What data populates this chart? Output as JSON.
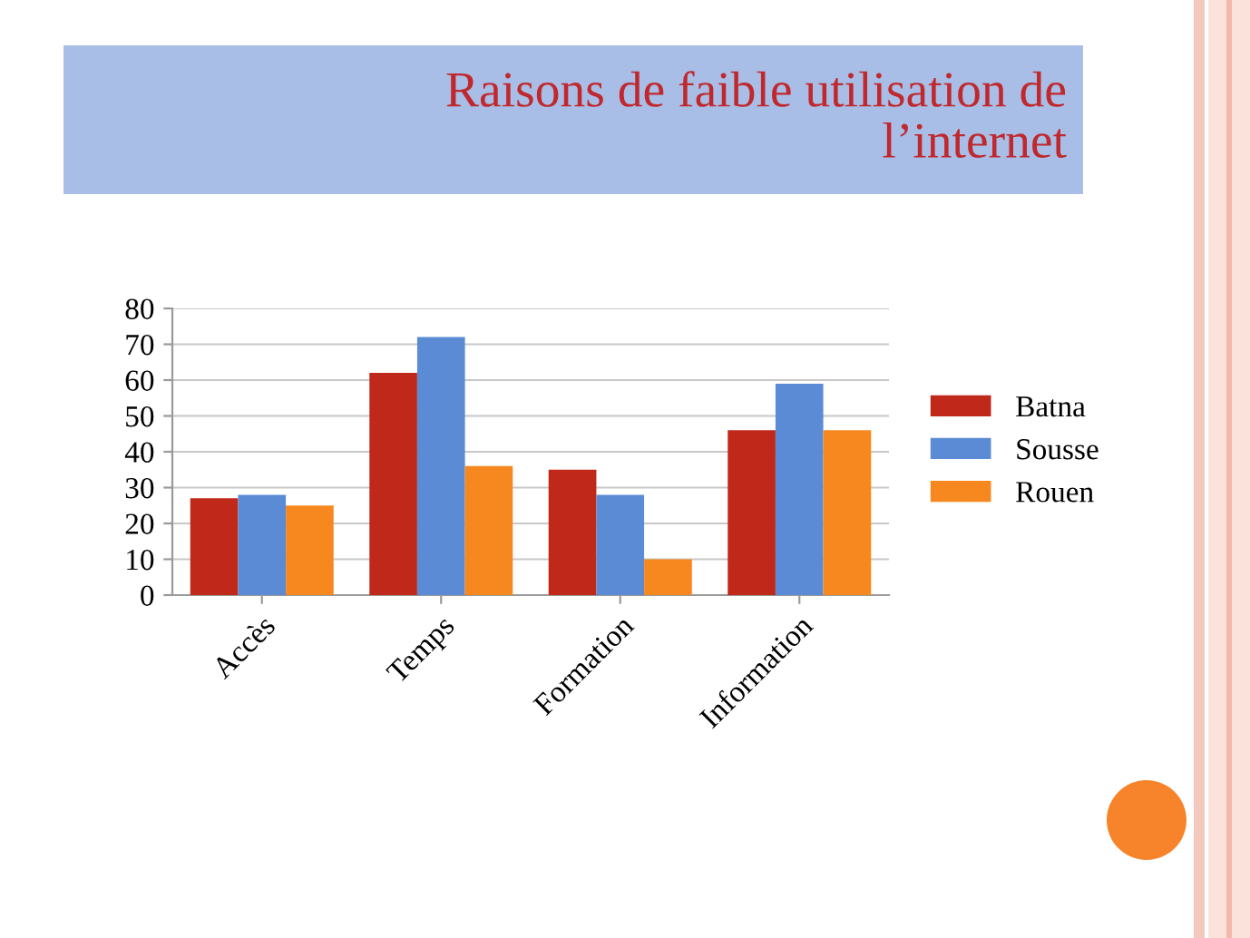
{
  "chart_data": {
    "type": "bar",
    "title": "Raisons de faible utilisation de\nl’internet",
    "categories": [
      "Accès",
      "Temps",
      "Formation",
      "Information"
    ],
    "series": [
      {
        "name": "Batna",
        "color": "#c0281a",
        "values": [
          27,
          62,
          35,
          46
        ]
      },
      {
        "name": "Sousse",
        "color": "#5b8bd4",
        "values": [
          28,
          72,
          28,
          59
        ]
      },
      {
        "name": "Rouen",
        "color": "#f7881f",
        "values": [
          25,
          36,
          10,
          46
        ]
      }
    ],
    "ylim": [
      0,
      80
    ],
    "yticks": [
      0,
      10,
      20,
      30,
      40,
      50,
      60,
      70,
      80
    ],
    "grid": "y",
    "legend": "right"
  }
}
